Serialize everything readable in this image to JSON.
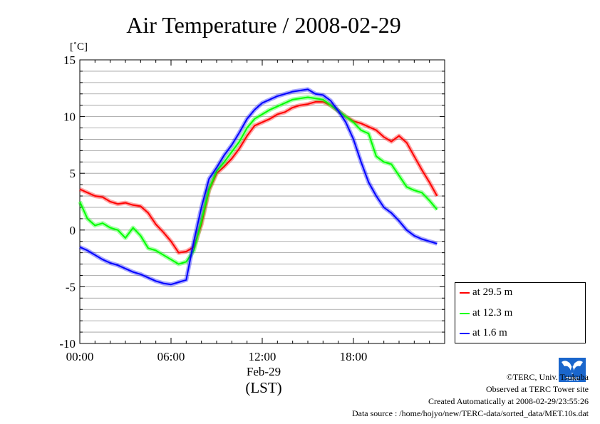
{
  "chart_data": {
    "type": "line",
    "title": "Air Temperature / 2008-02-29",
    "ylabel": "[˚C]",
    "xlabel": "(LST)",
    "x_date_label": "Feb-29",
    "xlim": [
      0,
      24
    ],
    "ylim": [
      -10,
      15
    ],
    "x_ticks": [
      0,
      6,
      12,
      18
    ],
    "x_tick_labels": [
      "00:00",
      "06:00",
      "12:00",
      "18:00"
    ],
    "y_ticks": [
      -10,
      -5,
      0,
      5,
      10,
      15
    ],
    "y_tick_labels": [
      "-10",
      "-5",
      "0",
      "5",
      "10",
      "15"
    ],
    "grid": true,
    "legend_position": "lower-right-outside",
    "series": [
      {
        "name": "at 29.5 m",
        "color": "#ff0000",
        "x": [
          0,
          0.5,
          1,
          1.5,
          2,
          2.5,
          3,
          3.5,
          4,
          4.5,
          5,
          5.5,
          6,
          6.5,
          7,
          7.5,
          8,
          8.5,
          9,
          9.5,
          10,
          10.5,
          11,
          11.5,
          12,
          12.5,
          13,
          13.5,
          14,
          14.5,
          15,
          15.5,
          16,
          16.5,
          17,
          17.5,
          18,
          18.5,
          19,
          19.5,
          20,
          20.5,
          21,
          21.5,
          22,
          22.5,
          23,
          23.5
        ],
        "y": [
          3.6,
          3.3,
          3.0,
          2.9,
          2.5,
          2.3,
          2.4,
          2.2,
          2.1,
          1.5,
          0.5,
          -0.2,
          -1.0,
          -2.0,
          -1.9,
          -1.5,
          0.5,
          3.5,
          5.0,
          5.6,
          6.3,
          7.2,
          8.3,
          9.2,
          9.5,
          9.8,
          10.2,
          10.4,
          10.8,
          11.0,
          11.1,
          11.3,
          11.3,
          11.0,
          10.5,
          10.0,
          9.6,
          9.4,
          9.1,
          8.8,
          8.2,
          7.8,
          8.3,
          7.7,
          6.5,
          5.3,
          4.2,
          3.0
        ]
      },
      {
        "name": "at 12.3 m",
        "color": "#00ff00",
        "x": [
          0,
          0.5,
          1,
          1.5,
          2,
          2.5,
          3,
          3.5,
          4,
          4.5,
          5,
          5.5,
          6,
          6.5,
          7,
          7.5,
          8,
          8.5,
          9,
          9.5,
          10,
          10.5,
          11,
          11.5,
          12,
          12.5,
          13,
          13.5,
          14,
          14.5,
          15,
          15.5,
          16,
          16.5,
          17,
          17.5,
          18,
          18.5,
          19,
          19.5,
          20,
          20.5,
          21,
          21.5,
          22,
          22.5,
          23,
          23.5
        ],
        "y": [
          2.5,
          1.0,
          0.4,
          0.6,
          0.2,
          0.0,
          -0.7,
          0.2,
          -0.5,
          -1.6,
          -1.8,
          -2.2,
          -2.6,
          -3.0,
          -2.8,
          -1.8,
          0.8,
          3.6,
          5.2,
          6.0,
          6.9,
          7.8,
          9.0,
          9.8,
          10.2,
          10.6,
          10.9,
          11.2,
          11.5,
          11.6,
          11.7,
          11.6,
          11.5,
          11.0,
          10.5,
          10.0,
          9.5,
          8.8,
          8.5,
          6.5,
          6.0,
          5.8,
          4.8,
          3.8,
          3.5,
          3.3,
          2.6,
          1.8
        ]
      },
      {
        "name": "at 1.6 m",
        "color": "#0000ff",
        "x": [
          0,
          0.5,
          1,
          1.5,
          2,
          2.5,
          3,
          3.5,
          4,
          4.5,
          5,
          5.5,
          6,
          6.5,
          7,
          7.5,
          8,
          8.5,
          9,
          9.5,
          10,
          10.5,
          11,
          11.5,
          12,
          12.5,
          13,
          13.5,
          14,
          14.5,
          15,
          15.5,
          16,
          16.5,
          17,
          17.5,
          18,
          18.5,
          19,
          19.5,
          20,
          20.5,
          21,
          21.5,
          22,
          22.5,
          23,
          23.5
        ],
        "y": [
          -1.5,
          -1.8,
          -2.2,
          -2.6,
          -2.9,
          -3.1,
          -3.4,
          -3.7,
          -3.9,
          -4.2,
          -4.5,
          -4.7,
          -4.8,
          -4.6,
          -4.4,
          -1.0,
          2.0,
          4.5,
          5.5,
          6.6,
          7.5,
          8.6,
          9.8,
          10.6,
          11.2,
          11.5,
          11.8,
          12.0,
          12.2,
          12.3,
          12.4,
          12.0,
          11.9,
          11.4,
          10.5,
          9.5,
          8.0,
          6.0,
          4.2,
          3.0,
          2.0,
          1.5,
          0.8,
          0.0,
          -0.5,
          -0.8,
          -1.0,
          -1.2
        ]
      }
    ]
  },
  "footer": {
    "copyright": "©TERC, Univ. Tsukuba",
    "observed": "Observed at TERC Tower site",
    "created": "Created Automatically at 2008-02-29/23:55:26",
    "source": "Data source : /home/hojyo/new/TERC-data/sorted_data/MET.10s.dat"
  },
  "logo": {
    "text": "TERC",
    "color": "#1a66cc"
  }
}
